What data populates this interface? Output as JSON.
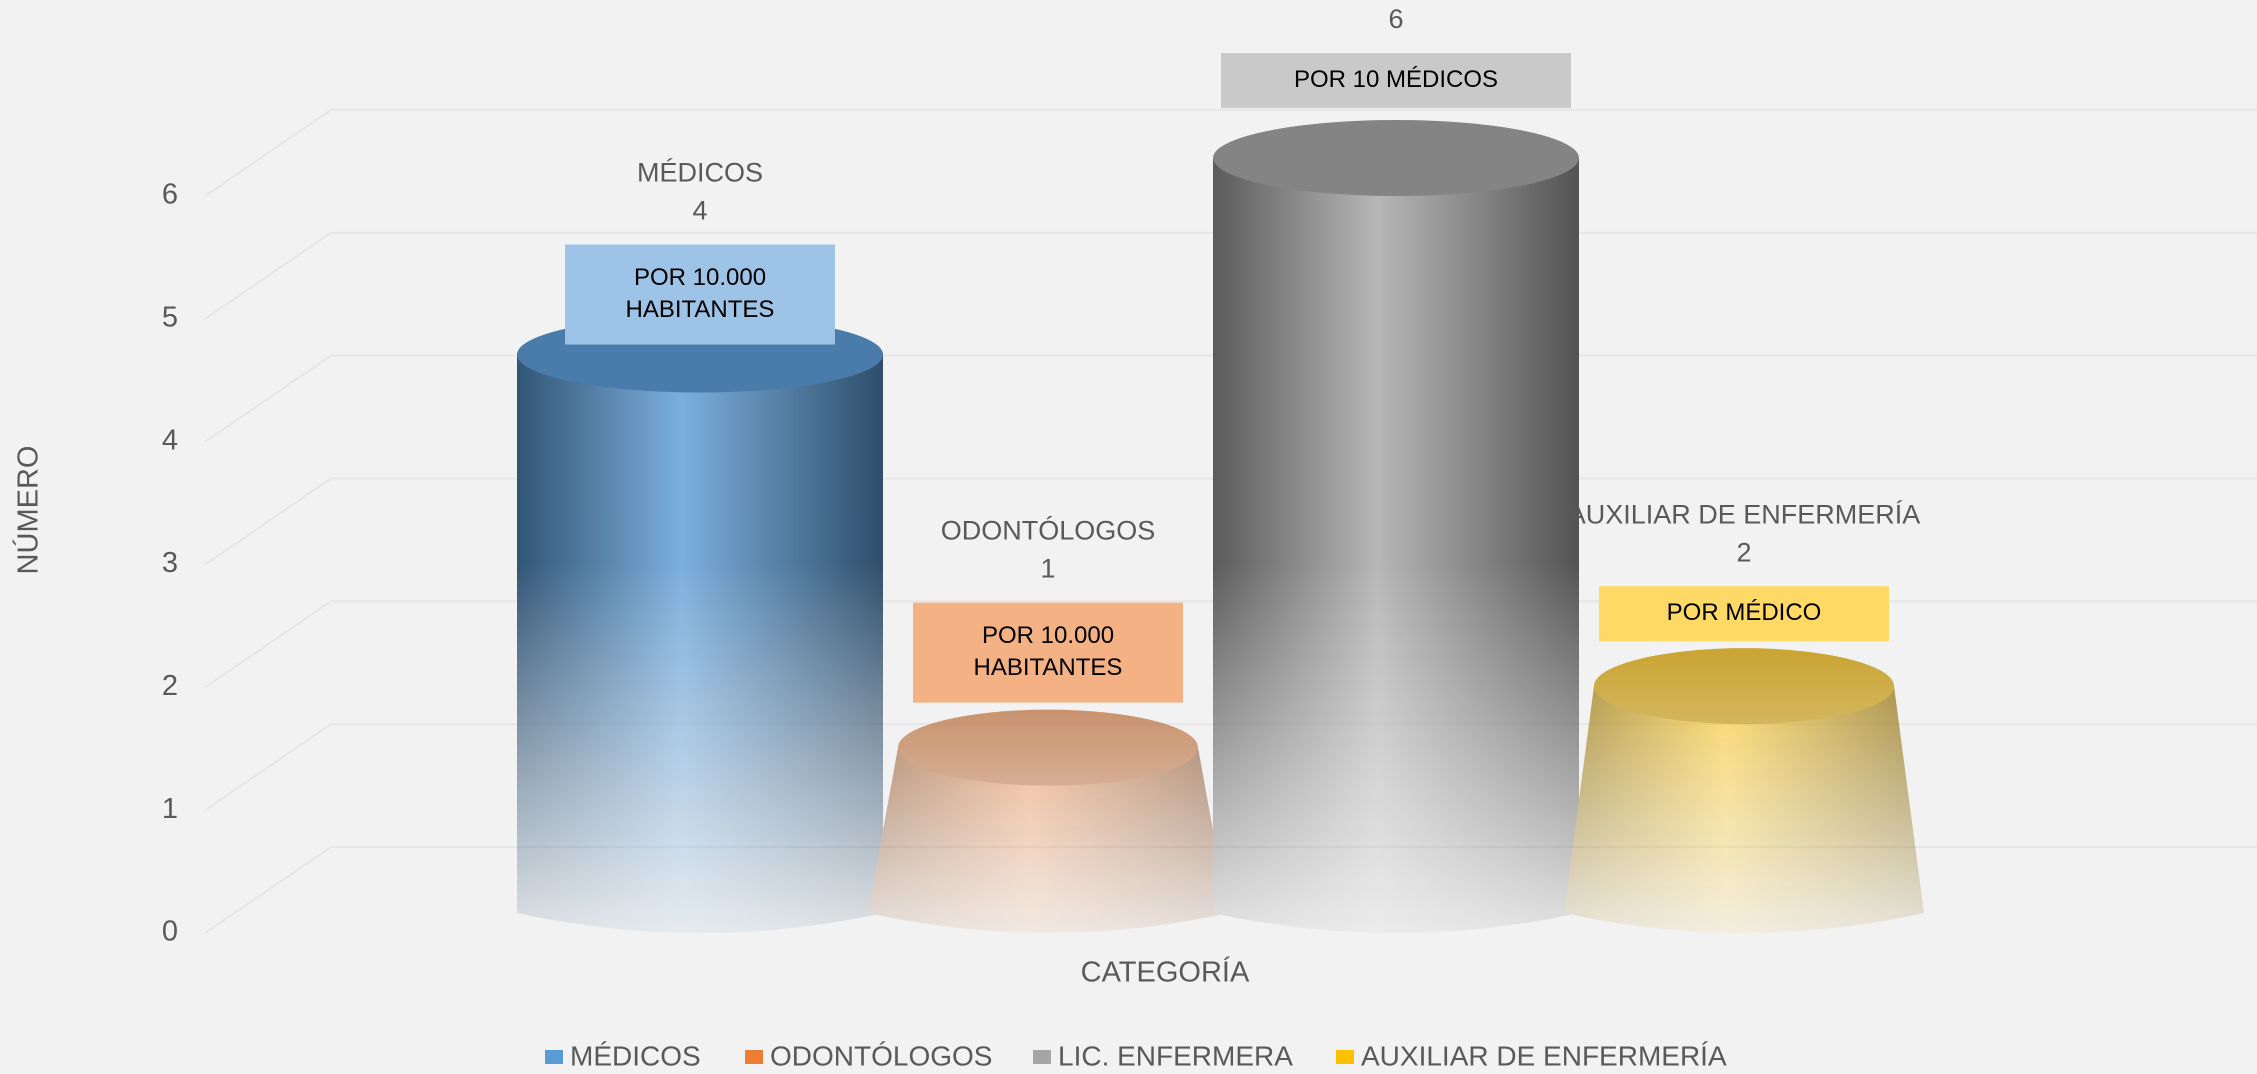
{
  "chart_data": {
    "type": "bar",
    "categories": [
      "MÉDICOS",
      "ODONTÓLOGOS",
      "LIC.  ENFERMERA",
      "AUXILIAR DE ENFERMERÍA"
    ],
    "values": [
      4.4,
      1.2,
      6,
      1.7
    ],
    "value_labels": [
      "4",
      "1",
      "6",
      "2"
    ],
    "colors": [
      "#5b9bd5",
      "#ed7d31",
      "#a5a5a5",
      "#ffc000"
    ],
    "shapes": [
      "cylinder",
      "cone",
      "cylinder",
      "cone"
    ],
    "annotations": [
      {
        "lines": [
          "POR 10.000",
          "HABITANTES"
        ],
        "color": "#9dc3e6"
      },
      {
        "lines": [
          "POR 10.000",
          "HABITANTES"
        ],
        "color": "#f4b183"
      },
      {
        "lines": [
          "POR 10  MÉDICOS"
        ],
        "color": "#c9c9c9"
      },
      {
        "lines": [
          "POR MÉDICO"
        ],
        "color": "#ffd966"
      }
    ],
    "y_label": "NÚMERO",
    "x_label": "CATEGORÍA",
    "ylim": [
      0,
      6
    ],
    "yticks": [
      0,
      1,
      2,
      3,
      4,
      5,
      6
    ],
    "grid": true,
    "legend": "bottom"
  }
}
